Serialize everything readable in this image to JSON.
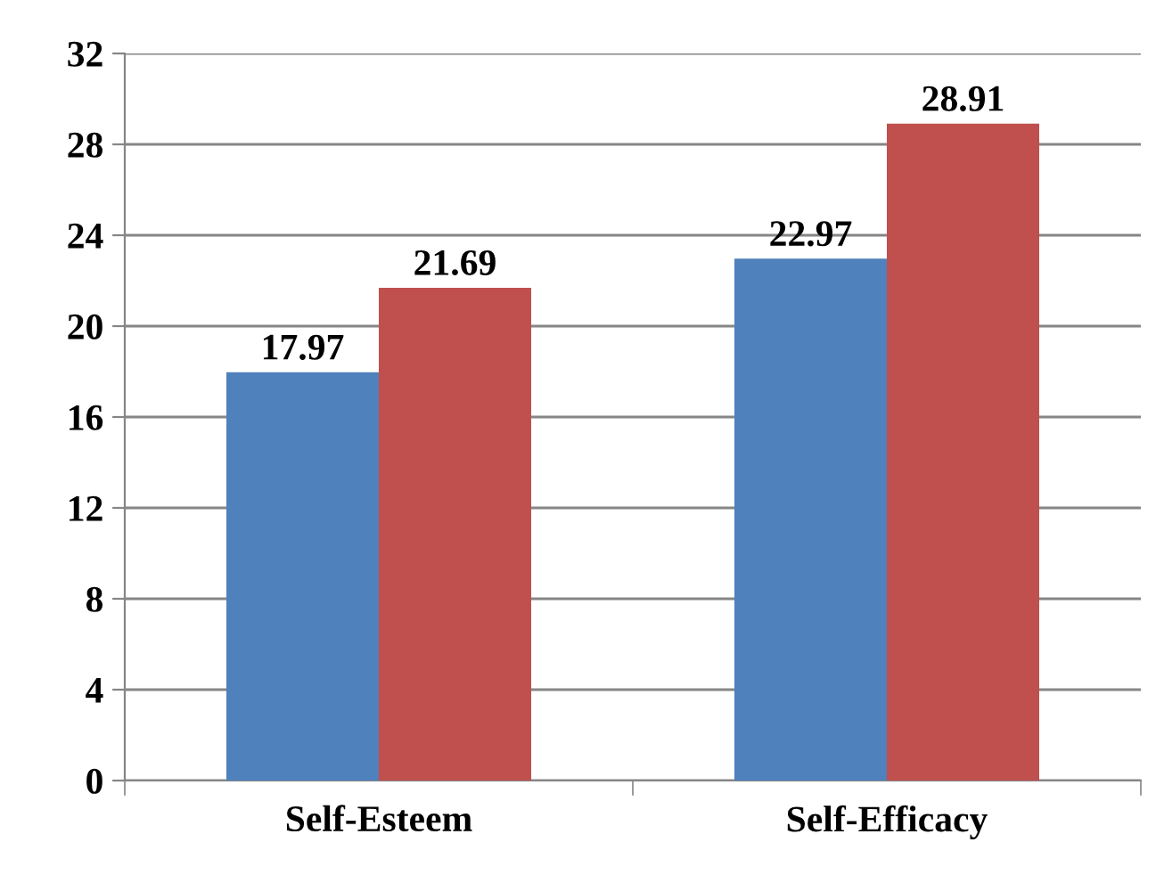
{
  "chart_data": {
    "type": "bar",
    "categories": [
      "Self-Esteem",
      "Self-Efficacy"
    ],
    "series": [
      {
        "color": "#4f81bd",
        "values": [
          17.97,
          22.97
        ]
      },
      {
        "color": "#c0504d",
        "values": [
          21.69,
          28.91
        ]
      }
    ],
    "ylim": [
      0,
      32
    ],
    "yticks": [
      0,
      4,
      8,
      12,
      16,
      20,
      24,
      28,
      32
    ],
    "grid": "y",
    "data_labels": true
  }
}
